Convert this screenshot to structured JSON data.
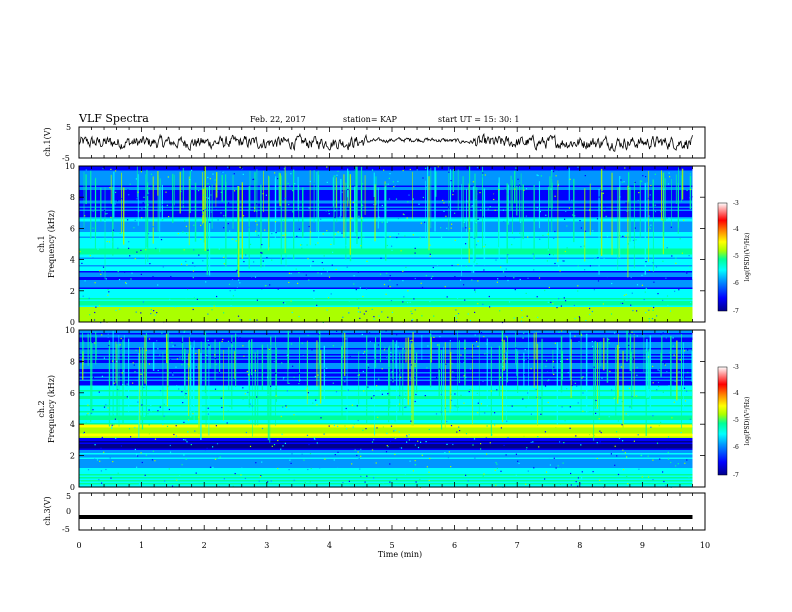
{
  "header": {
    "title": "VLF Spectra",
    "date": "Feb. 22, 2017",
    "station": "station= KAP",
    "start": "start UT = 15: 30: 1"
  },
  "colors": {
    "spectrogram": [
      "#00008b",
      "#0000ff",
      "#0096ff",
      "#00ffff",
      "#00ff96",
      "#aaff00",
      "#ffff00",
      "#ff8800",
      "#ff0000",
      "#ffffff"
    ],
    "trace": "#000000",
    "axis": "#000000"
  },
  "chart_data": [
    {
      "type": "line",
      "name": "ch1-waveform",
      "ylabel": "ch.1(V)",
      "xlim": [
        0,
        10
      ],
      "ylim": [
        -5,
        5
      ],
      "yticks": [
        "5",
        "-5"
      ],
      "description_values": {
        "x_end": 9.8,
        "baseline": 0
      }
    },
    {
      "type": "heatmap",
      "name": "ch1-spectrogram",
      "ylabel_line1": "ch.1",
      "ylabel_line2": "Frequency (kHz)",
      "xlim": [
        0,
        10
      ],
      "ylim": [
        0,
        10
      ],
      "yticks": [
        "0",
        "2",
        "4",
        "6",
        "8",
        "10"
      ],
      "colorbar": {
        "label": "log(PSD)(V²/Hz)",
        "range": [
          -7,
          -3
        ],
        "ticks": [
          "-3",
          "-4",
          "-5",
          "-6",
          "-7"
        ]
      }
    },
    {
      "type": "heatmap",
      "name": "ch2-spectrogram",
      "ylabel_line1": "ch.2",
      "ylabel_line2": "Frequency (kHz)",
      "xlim": [
        0,
        10
      ],
      "ylim": [
        0,
        10
      ],
      "yticks": [
        "0",
        "2",
        "4",
        "6",
        "8",
        "10"
      ],
      "colorbar": {
        "label": "log(PSD)(V²/Hz)",
        "range": [
          -7,
          -3
        ],
        "ticks": [
          "-3",
          "-4",
          "-5",
          "-6",
          "-7"
        ]
      }
    },
    {
      "type": "line",
      "name": "ch3-waveform",
      "ylabel": "ch.3(V)",
      "xlim": [
        0,
        10
      ],
      "ylim": [
        -5,
        5
      ],
      "yticks": [
        "5",
        "0",
        "-5"
      ],
      "description_values": {
        "level": -1.5,
        "x_end": 9.8
      }
    }
  ],
  "x_axis": {
    "label": "Time (min)",
    "ticks": [
      "0",
      "1",
      "2",
      "3",
      "4",
      "5",
      "6",
      "7",
      "8",
      "9",
      "10"
    ]
  }
}
